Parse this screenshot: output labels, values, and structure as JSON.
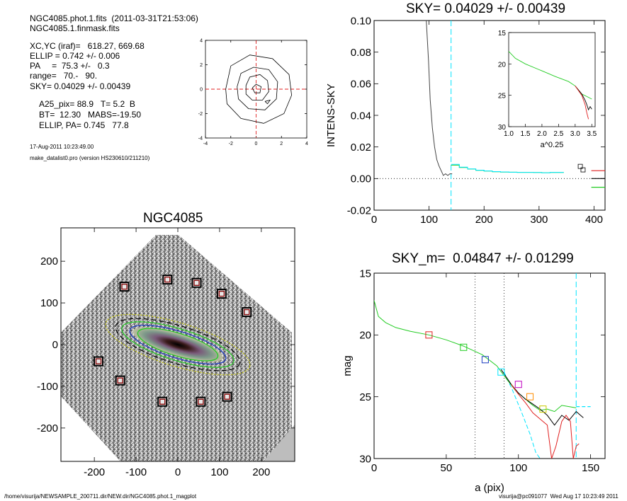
{
  "info": {
    "line1": "NGC4085.phot.1.fits  (2011-03-31T21:53:06)",
    "line2": "NGC4085.1.finmask.fits",
    "line3": "XC,YC (iraf)=   618.27, 669.68",
    "line4": "ELLIP = 0.742 +/- 0.006",
    "line5": "PA     =  75.3 +/-   0.3",
    "line6": "range=   70.-   90.",
    "line7": "SKY= 0.04029 +/- 0.00439",
    "line8": "A25_pix= 88.9   T= 5.2  B",
    "line9": "BT=  12.30   MABS=-19.50",
    "line10": "ELLIP, PA= 0.745   77.8",
    "date": "17-Aug-2011 10:23:49.00",
    "program": "make_datalist0.pro (version HS230610/211210)"
  },
  "footer": {
    "left": "/home/visurija/NEWSAMPLE_200711.dir/NEW.dir/NGC4085.phot.1_magplot",
    "right": "visurija@pc091077  Wed Aug 17 10:23:49 2011"
  },
  "colors": {
    "cyan": "#00e5ff",
    "green": "#22cc22",
    "red": "#e02020",
    "dark_red": "#8b1010",
    "blue": "#1c3cc0",
    "gray": "#444444"
  },
  "chart_data": [
    {
      "type": "line",
      "id": "center_contours",
      "title": "",
      "xlabel": "",
      "ylabel": "",
      "xlim": [
        -4,
        4
      ],
      "ylim": [
        -4,
        4
      ],
      "xticks": [
        "-4",
        "-2",
        "0",
        "2",
        "4"
      ],
      "yticks": [
        "-4",
        "-2",
        "0",
        "2",
        "4"
      ],
      "crosshair": [
        0,
        0
      ],
      "contours": [
        [
          [
            -2.4,
            0.0
          ],
          [
            -2.0,
            1.9
          ],
          [
            -0.5,
            2.8
          ],
          [
            1.3,
            2.5
          ],
          [
            2.6,
            1.2
          ],
          [
            2.8,
            -0.5
          ],
          [
            2.2,
            -2.0
          ],
          [
            0.6,
            -2.8
          ],
          [
            -1.2,
            -2.4
          ],
          [
            -2.3,
            -1.2
          ],
          [
            -2.4,
            0.0
          ]
        ],
        [
          [
            -1.5,
            0.2
          ],
          [
            -1.2,
            1.3
          ],
          [
            -0.2,
            1.8
          ],
          [
            1.0,
            1.6
          ],
          [
            1.7,
            0.6
          ],
          [
            1.6,
            -0.8
          ],
          [
            0.7,
            -1.7
          ],
          [
            -0.6,
            -1.6
          ],
          [
            -1.4,
            -0.8
          ],
          [
            -1.5,
            0.2
          ]
        ],
        [
          [
            -0.8,
            0.3
          ],
          [
            -0.5,
            1.0
          ],
          [
            0.3,
            1.2
          ],
          [
            0.9,
            0.7
          ],
          [
            1.0,
            -0.2
          ],
          [
            0.5,
            -0.9
          ],
          [
            -0.3,
            -0.9
          ],
          [
            -0.8,
            -0.4
          ],
          [
            -0.8,
            0.3
          ]
        ],
        [
          [
            -0.3,
            0.1
          ],
          [
            0.0,
            0.4
          ],
          [
            0.4,
            0.2
          ],
          [
            0.3,
            -0.3
          ],
          [
            -0.1,
            -0.3
          ],
          [
            -0.3,
            0.1
          ]
        ],
        [
          [
            0.7,
            -1.0
          ],
          [
            1.1,
            -0.9
          ],
          [
            0.9,
            -1.2
          ],
          [
            0.7,
            -1.0
          ]
        ]
      ]
    },
    {
      "type": "line",
      "id": "sky_profile",
      "title": "SKY= 0.04029 +/- 0.00439",
      "xlabel": "",
      "ylabel": "INTENS-SKY",
      "xlim": [
        0,
        420
      ],
      "ylim": [
        -0.02,
        0.1
      ],
      "xticks": [
        "0",
        "100",
        "200",
        "300",
        "400"
      ],
      "yticks": [
        "-0.02",
        "0.00",
        "0.02",
        "0.04",
        "0.06",
        "0.08",
        "0.10"
      ],
      "vline_cyan": 140,
      "series": [
        {
          "color": "gray",
          "x": [
            95,
            99,
            102,
            106,
            110,
            114,
            118,
            122,
            126,
            130,
            134,
            138,
            142
          ],
          "y": [
            0.1,
            0.075,
            0.05,
            0.032,
            0.02,
            0.012,
            0.008,
            0.005,
            0.002,
            0.003,
            0.002,
            0.003,
            0.003
          ]
        },
        {
          "color": "green",
          "x": [
            140,
            155,
            155,
            170,
            170,
            185,
            185,
            200,
            200,
            215,
            215,
            230,
            230,
            245,
            245,
            260,
            260,
            275,
            275,
            290,
            290,
            305,
            305,
            320,
            320,
            345
          ],
          "y": [
            0.0085,
            0.0085,
            0.007,
            0.007,
            0.006,
            0.006,
            0.0052,
            0.0052,
            0.0047,
            0.0047,
            0.0043,
            0.0043,
            0.0041,
            0.0041,
            0.004,
            0.004,
            0.0039,
            0.0039,
            0.0039,
            0.0039,
            0.0038,
            0.0038,
            0.0037,
            0.0037,
            0.0038,
            0.0038
          ]
        },
        {
          "color": "cyan",
          "x": [
            140,
            155,
            155,
            170,
            170,
            185,
            185,
            200,
            200,
            215,
            215,
            230,
            230,
            245,
            245,
            260,
            260,
            275,
            275,
            290,
            290,
            305,
            305,
            320,
            320,
            345
          ],
          "y": [
            0.009,
            0.009,
            0.0072,
            0.0072,
            0.0061,
            0.0061,
            0.0053,
            0.0053,
            0.0048,
            0.0048,
            0.0044,
            0.0044,
            0.0042,
            0.0042,
            0.004,
            0.004,
            0.0039,
            0.0039,
            0.0039,
            0.0039,
            0.0038,
            0.0038,
            0.0037,
            0.0037,
            0.0039,
            0.0039
          ]
        }
      ],
      "points": [
        [
          375,
          0.0077
        ],
        [
          380,
          0.0055
        ]
      ],
      "edge_lines": [
        {
          "color": "red",
          "x": [
            395,
            420
          ],
          "y": [
            0.005,
            0.005
          ]
        },
        {
          "color": "black",
          "x": [
            395,
            420
          ],
          "y": [
            0.0,
            0.0
          ]
        },
        {
          "color": "green",
          "x": [
            395,
            420
          ],
          "y": [
            -0.0055,
            -0.0055
          ]
        }
      ],
      "inset": {
        "xlabel": "a^0.25",
        "xlim": [
          1.0,
          3.6
        ],
        "ylim": [
          15,
          30
        ],
        "xticks": [
          "1.0",
          "1.5",
          "2.0",
          "2.5",
          "3.0",
          "3.5"
        ],
        "yticks": [
          "15",
          "20",
          "25",
          "30"
        ],
        "series": [
          {
            "color": "green",
            "x": [
              1.0,
              1.2,
              1.5,
              2.0,
              2.4,
              2.8,
              3.0,
              3.2,
              3.35,
              3.5
            ],
            "y": [
              18.0,
              19.1,
              20.0,
              21.1,
              22.0,
              22.8,
              23.5,
              24.8,
              25.2,
              25.6
            ]
          },
          {
            "color": "black",
            "x": [
              3.0,
              3.2,
              3.3,
              3.35,
              3.4,
              3.45,
              3.5
            ],
            "y": [
              23.5,
              24.8,
              25.8,
              26.5,
              27.3,
              26.8,
              27.2
            ]
          },
          {
            "color": "red",
            "x": [
              3.0,
              3.2,
              3.3,
              3.35,
              3.4
            ],
            "y": [
              23.5,
              25.0,
              26.5,
              27.8,
              28.8
            ]
          }
        ]
      }
    },
    {
      "type": "heatmap",
      "id": "galaxy_image",
      "title": "NGC4085",
      "xlabel": "",
      "ylabel": "",
      "xlim": [
        -280,
        280
      ],
      "ylim": [
        -280,
        280
      ],
      "xticks": [
        "-200",
        "-100",
        "0",
        "100",
        "200"
      ],
      "yticks": [
        "-200",
        "-100",
        "0",
        "100",
        "200"
      ],
      "sky_boxes": [
        [
          -128,
          139
        ],
        [
          -25,
          156
        ],
        [
          45,
          148
        ],
        [
          105,
          122
        ],
        [
          165,
          78
        ],
        [
          -190,
          -40
        ],
        [
          -138,
          -86
        ],
        [
          -37,
          -137
        ],
        [
          55,
          -137
        ],
        [
          118,
          -125
        ]
      ],
      "isophotes": [
        {
          "color": "yellow",
          "a": 180,
          "b": 52,
          "pa": 17
        },
        {
          "color": "black",
          "a": 155,
          "b": 45,
          "pa": 17
        },
        {
          "color": "green",
          "a": 140,
          "b": 38,
          "pa": 17
        },
        {
          "color": "blue",
          "a": 120,
          "b": 32,
          "pa": 17
        },
        {
          "color": "green",
          "a": 100,
          "b": 27,
          "pa": 17
        }
      ]
    },
    {
      "type": "line",
      "id": "mag_profile",
      "title": "SKY_m=  0.04847 +/- 0.01299",
      "xlabel": "a (pix)",
      "ylabel": "mag",
      "xlim": [
        0,
        160
      ],
      "ylim": [
        15,
        30
      ],
      "xticks": [
        "0",
        "50",
        "100",
        "150"
      ],
      "yticks": [
        "15",
        "20",
        "25",
        "30"
      ],
      "vlines_dotted": [
        70,
        90
      ],
      "vline_cyan": 140,
      "series": [
        {
          "color": "green",
          "x": [
            0,
            3,
            8,
            15,
            25,
            38,
            50,
            62,
            75,
            85,
            92,
            98,
            105,
            110,
            115,
            120,
            125,
            130,
            135,
            140
          ],
          "y": [
            17.2,
            18.5,
            19.0,
            19.4,
            19.7,
            20.0,
            20.4,
            20.9,
            21.6,
            22.5,
            23.6,
            24.5,
            25.2,
            25.7,
            26.1,
            26.0,
            26.2,
            25.7,
            25.8,
            25.9
          ]
        },
        {
          "color": "black",
          "x": [
            88,
            95,
            100,
            105,
            110,
            115,
            120,
            125,
            130,
            135,
            140,
            145
          ],
          "y": [
            22.8,
            24.0,
            24.7,
            25.2,
            25.6,
            26.0,
            26.5,
            27.3,
            26.5,
            26.9,
            26.2,
            26.7
          ]
        },
        {
          "color": "red",
          "x": [
            95,
            100,
            105,
            110,
            115,
            120,
            123,
            126,
            128,
            130,
            133,
            136,
            138,
            140,
            142
          ],
          "y": [
            24.0,
            24.8,
            25.5,
            26.3,
            26.8,
            27.3,
            30.0,
            29.0,
            28.0,
            27.0,
            26.5,
            27.0,
            30.0,
            29.0,
            28.8
          ]
        }
      ],
      "cyan_model": {
        "x": [
          90,
          96,
          102,
          108,
          112,
          115
        ],
        "y": [
          23.0,
          24.5,
          26.2,
          28.0,
          29.5,
          30.0
        ]
      },
      "sky_dashed": {
        "x": [
          140,
          150
        ],
        "y": 25.8
      },
      "squares": [
        {
          "x": 38,
          "y": 20.0,
          "color": "red"
        },
        {
          "x": 62,
          "y": 21.0,
          "color": "green"
        },
        {
          "x": 77,
          "y": 22.0,
          "color": "blue"
        },
        {
          "x": 88,
          "y": 23.0,
          "color": "cyan"
        },
        {
          "x": 100,
          "y": 24.0,
          "color": "magenta"
        },
        {
          "x": 108,
          "y": 25.0,
          "color": "orange"
        },
        {
          "x": 117,
          "y": 26.0,
          "color": "yellow"
        }
      ]
    }
  ]
}
